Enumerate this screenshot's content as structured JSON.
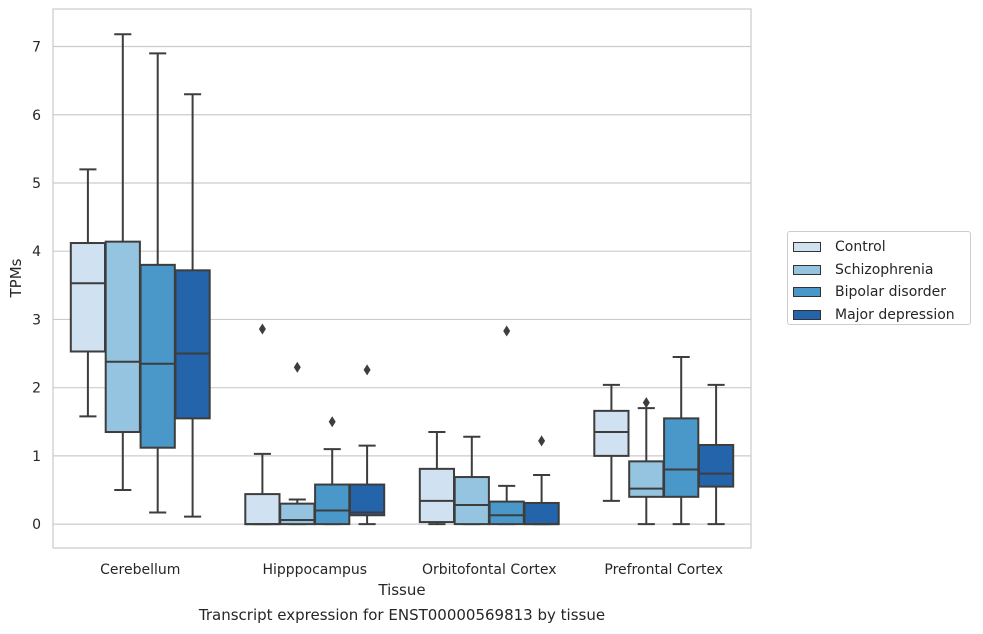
{
  "chart_data": {
    "type": "boxplot",
    "xlabel": "Tissue",
    "ylabel": "TPMs",
    "ylim": [
      -0.35,
      7.55
    ],
    "yticks": [
      0,
      1,
      2,
      3,
      4,
      5,
      6,
      7
    ],
    "grid": "horizontal",
    "legend_position": "right",
    "categories": [
      "Cerebellum",
      "Hipppocampus",
      "Orbitofontal Cortex",
      "Prefrontal Cortex"
    ],
    "series": [
      {
        "name": "Control",
        "color": "#d0e1f2",
        "boxes": [
          {
            "whisker_low": 1.58,
            "q1": 2.53,
            "median": 3.53,
            "q3": 4.12,
            "whisker_high": 5.2,
            "outliers": []
          },
          {
            "whisker_low": 0.0,
            "q1": 0.0,
            "median": 0.0,
            "q3": 0.44,
            "whisker_high": 1.03,
            "outliers": [
              2.86
            ]
          },
          {
            "whisker_low": 0.0,
            "q1": 0.03,
            "median": 0.34,
            "q3": 0.81,
            "whisker_high": 1.35,
            "outliers": []
          },
          {
            "whisker_low": 0.34,
            "q1": 1.0,
            "median": 1.35,
            "q3": 1.66,
            "whisker_high": 2.04,
            "outliers": []
          }
        ]
      },
      {
        "name": "Schizophrenia",
        "color": "#94c4df",
        "boxes": [
          {
            "whisker_low": 0.5,
            "q1": 1.35,
            "median": 2.38,
            "q3": 4.14,
            "whisker_high": 7.18,
            "outliers": []
          },
          {
            "whisker_low": 0.0,
            "q1": 0.0,
            "median": 0.06,
            "q3": 0.3,
            "whisker_high": 0.36,
            "outliers": [
              2.3
            ]
          },
          {
            "whisker_low": 0.0,
            "q1": 0.0,
            "median": 0.28,
            "q3": 0.69,
            "whisker_high": 1.28,
            "outliers": []
          },
          {
            "whisker_low": 0.0,
            "q1": 0.4,
            "median": 0.52,
            "q3": 0.92,
            "whisker_high": 1.7,
            "outliers": [
              1.78
            ]
          }
        ]
      },
      {
        "name": "Bipolar disorder",
        "color": "#4a98c9",
        "boxes": [
          {
            "whisker_low": 0.17,
            "q1": 1.12,
            "median": 2.35,
            "q3": 3.8,
            "whisker_high": 6.9,
            "outliers": []
          },
          {
            "whisker_low": 0.0,
            "q1": 0.0,
            "median": 0.2,
            "q3": 0.58,
            "whisker_high": 1.1,
            "outliers": [
              1.5
            ]
          },
          {
            "whisker_low": 0.0,
            "q1": 0.0,
            "median": 0.13,
            "q3": 0.33,
            "whisker_high": 0.56,
            "outliers": [
              2.83
            ]
          },
          {
            "whisker_low": 0.0,
            "q1": 0.4,
            "median": 0.8,
            "q3": 1.55,
            "whisker_high": 2.45,
            "outliers": []
          }
        ]
      },
      {
        "name": "Major depression",
        "color": "#2464ab",
        "boxes": [
          {
            "whisker_low": 0.11,
            "q1": 1.55,
            "median": 2.5,
            "q3": 3.72,
            "whisker_high": 6.3,
            "outliers": []
          },
          {
            "whisker_low": 0.0,
            "q1": 0.13,
            "median": 0.17,
            "q3": 0.58,
            "whisker_high": 1.15,
            "outliers": [
              2.26
            ]
          },
          {
            "whisker_low": 0.0,
            "q1": 0.0,
            "median": 0.0,
            "q3": 0.31,
            "whisker_high": 0.72,
            "outliers": [
              1.22
            ]
          },
          {
            "whisker_low": 0.0,
            "q1": 0.55,
            "median": 0.74,
            "q3": 1.16,
            "whisker_high": 2.04,
            "outliers": []
          }
        ]
      }
    ]
  },
  "caption": "Transcript expression for ENST00000569813 by tissue"
}
